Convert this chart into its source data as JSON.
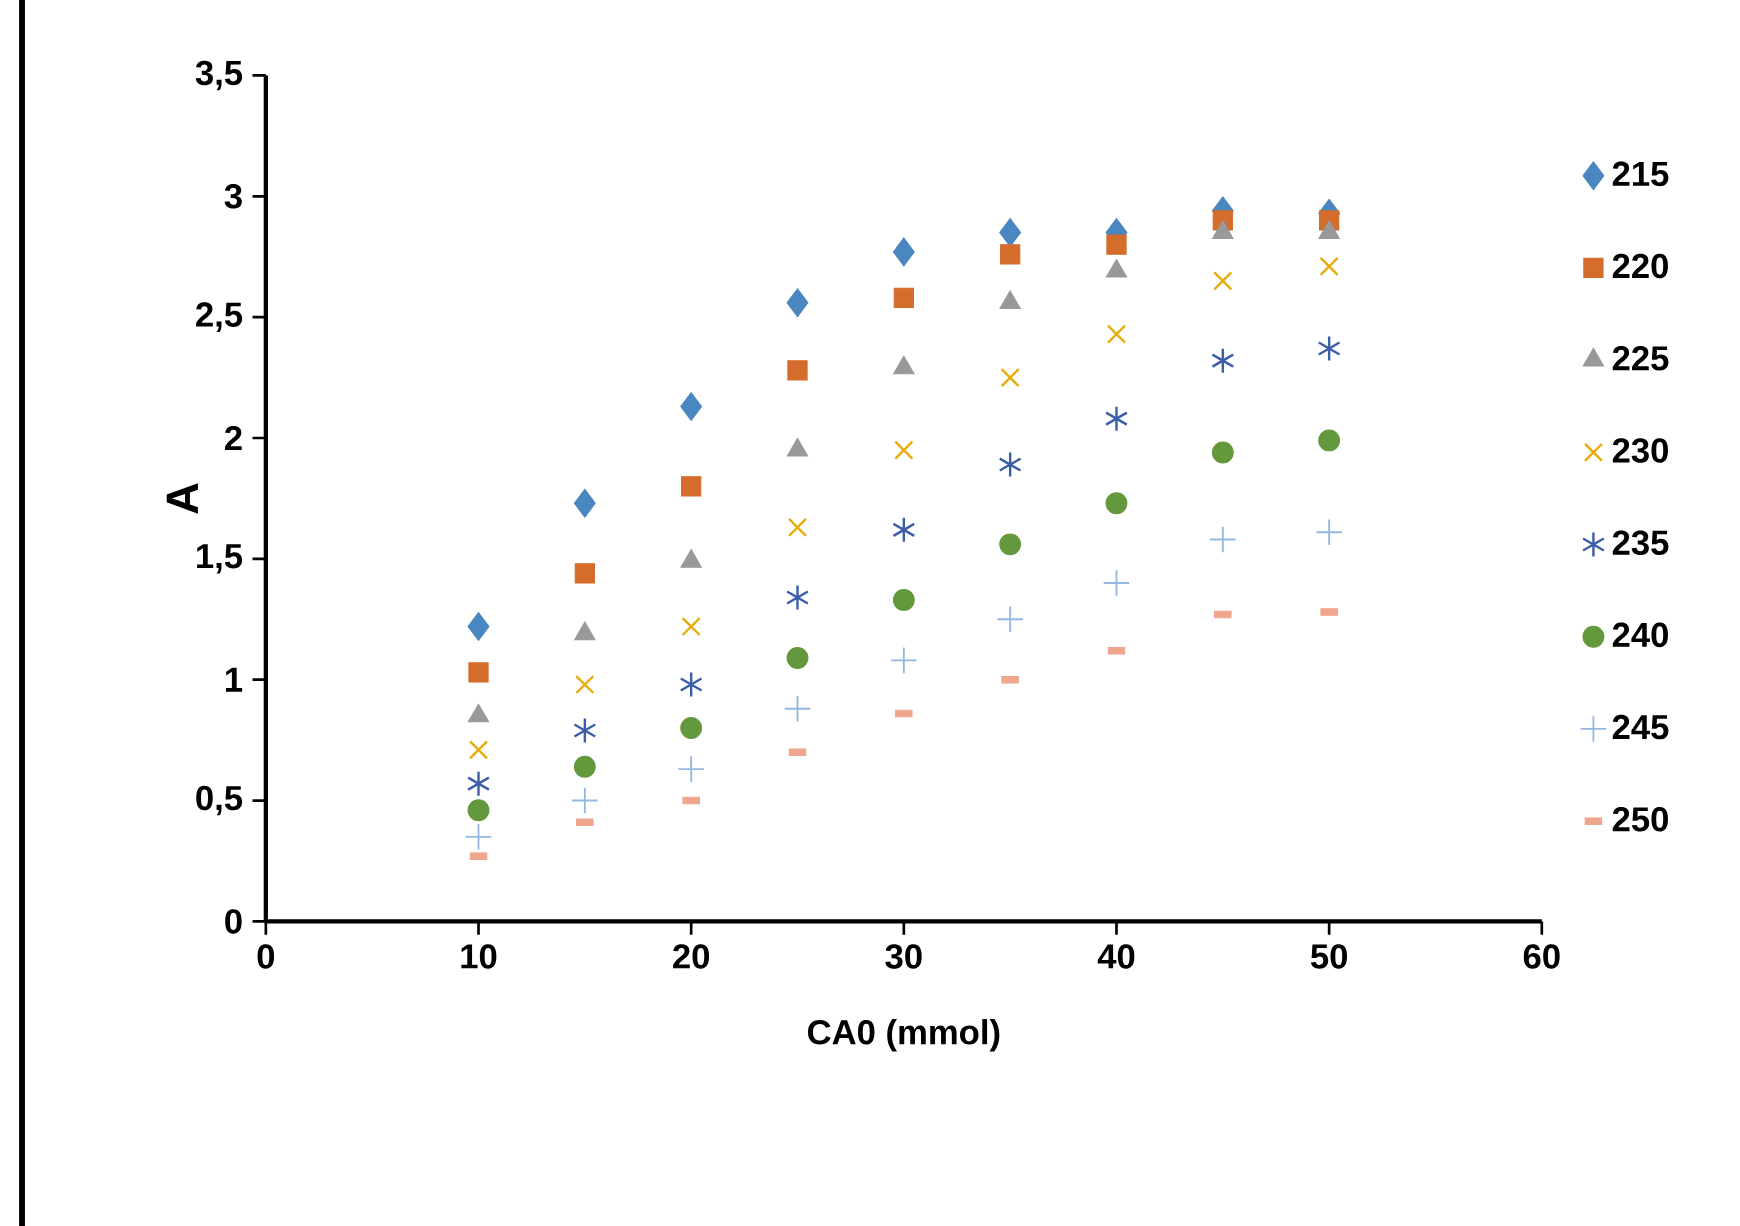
{
  "chart_data": {
    "type": "scatter",
    "xlabel": "CA0 (mmol)",
    "ylabel": "A",
    "x": [
      10,
      15,
      20,
      25,
      30,
      35,
      40,
      45,
      50
    ],
    "xlim": [
      0,
      60
    ],
    "xticks": [
      0,
      10,
      20,
      30,
      40,
      50,
      60
    ],
    "ylim": [
      0,
      3.5
    ],
    "yticks": [
      0,
      {
        "value": 0.5,
        "label": "0,5"
      },
      1,
      {
        "value": 1.5,
        "label": "1,5"
      },
      2,
      {
        "value": 2.5,
        "label": "2,5"
      },
      3,
      {
        "value": 3.5,
        "label": "3,5"
      }
    ],
    "grid": false,
    "legend": "right",
    "series": [
      {
        "name": "215",
        "color": "#4a86c0",
        "marker": "diamond",
        "values": [
          1.22,
          1.73,
          2.13,
          2.56,
          2.77,
          2.85,
          2.85,
          2.94,
          2.93
        ]
      },
      {
        "name": "220",
        "color": "#d46c2c",
        "marker": "square",
        "values": [
          1.03,
          1.44,
          1.8,
          2.28,
          2.58,
          2.76,
          2.8,
          2.9,
          2.9
        ]
      },
      {
        "name": "225",
        "color": "#999999",
        "marker": "triangle",
        "values": [
          0.85,
          1.19,
          1.49,
          1.95,
          2.29,
          2.56,
          2.69,
          2.85,
          2.85
        ]
      },
      {
        "name": "230",
        "color": "#e8ad0c",
        "marker": "cross",
        "values": [
          0.71,
          0.98,
          1.22,
          1.63,
          1.95,
          2.25,
          2.43,
          2.65,
          2.71
        ]
      },
      {
        "name": "235",
        "color": "#3c5eaa",
        "marker": "cross",
        "values": [
          0.57,
          0.79,
          0.98,
          1.34,
          1.62,
          1.89,
          2.08,
          2.32,
          2.37
        ]
      },
      {
        "name": "240",
        "color": "#64983c",
        "marker": "circle",
        "values": [
          0.46,
          0.64,
          0.8,
          1.09,
          1.33,
          1.56,
          1.73,
          1.94,
          1.99
        ]
      },
      {
        "name": "245",
        "color": "#94b8e0",
        "marker": "plus",
        "values": [
          0.35,
          0.5,
          0.63,
          0.88,
          1.08,
          1.25,
          1.4,
          1.58,
          1.61
        ]
      },
      {
        "name": "250",
        "color": "#f0a68c",
        "values": [
          0.27,
          0.41,
          0.5,
          0.7,
          0.86,
          1.0,
          1.12,
          1.27,
          1.28
        ]
      }
    ]
  }
}
